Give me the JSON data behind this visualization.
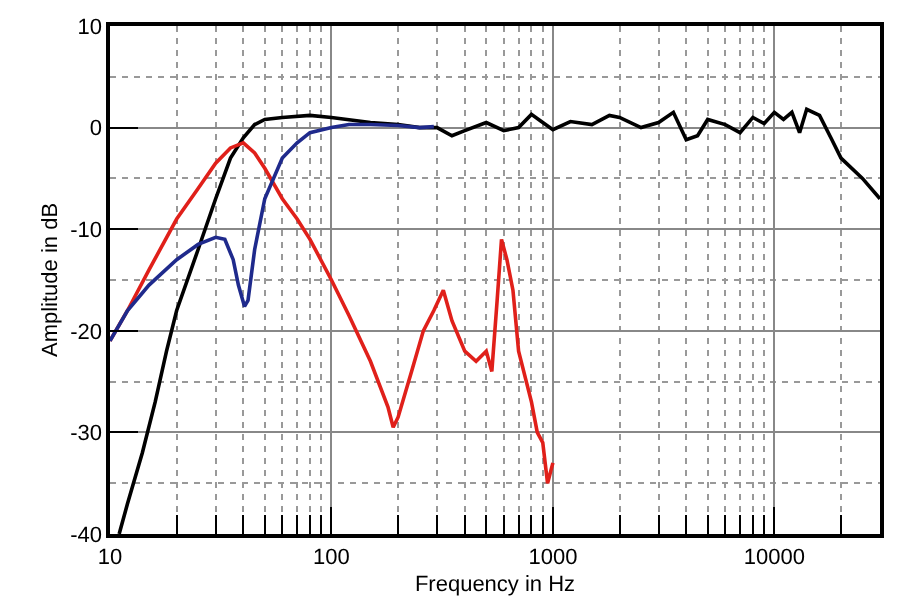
{
  "chart_data": {
    "type": "line",
    "xlabel": "Frequency in Hz",
    "ylabel": "Amplitude in dB",
    "xlim": [
      10,
      30000
    ],
    "ylim": [
      -40,
      10
    ],
    "xticks": [
      10,
      100,
      1000,
      10000
    ],
    "yticks": [
      -40,
      -30,
      -20,
      -10,
      0,
      10
    ],
    "log": "x",
    "grid": true,
    "marker": "none",
    "line_style": "solid",
    "series": [
      {
        "color": "#000000",
        "x": [
          11,
          12,
          14,
          16,
          18,
          20,
          25,
          30,
          35,
          40,
          45,
          50,
          60,
          80,
          100,
          150,
          200,
          250,
          300,
          350,
          400,
          500,
          600,
          700,
          800,
          900,
          1000,
          1200,
          1500,
          1800,
          2000,
          2500,
          3000,
          3500,
          4000,
          4500,
          5000,
          6000,
          7000,
          8000,
          9000,
          10000,
          11000,
          12000,
          13000,
          14000,
          16000,
          18000,
          20000,
          25000,
          30000
        ],
        "values": [
          -40,
          -37,
          -32,
          -27,
          -22,
          -18,
          -12,
          -7,
          -3,
          -1,
          0.3,
          0.8,
          1,
          1.2,
          1,
          0.5,
          0.3,
          0,
          0,
          -0.8,
          -0.3,
          0.5,
          -0.3,
          0,
          1.3,
          0.5,
          -0.2,
          0.6,
          0.3,
          1.2,
          1,
          0,
          0.5,
          1.5,
          -1.2,
          -0.8,
          0.8,
          0.3,
          -0.5,
          1,
          0.4,
          1.5,
          0.8,
          1.5,
          -0.5,
          1.8,
          1.2,
          -1,
          -3,
          -5,
          -7
        ]
      },
      {
        "color": "#e0201a",
        "x": [
          10,
          12,
          15,
          20,
          25,
          30,
          35,
          40,
          45,
          50,
          60,
          70,
          80,
          100,
          120,
          150,
          180,
          190,
          200,
          230,
          260,
          290,
          320,
          350,
          400,
          450,
          500,
          530,
          560,
          586,
          620,
          660,
          700,
          800,
          850,
          900,
          946,
          1000
        ],
        "values": [
          -21,
          -18,
          -14,
          -9,
          -6,
          -3.5,
          -2,
          -1.5,
          -2.5,
          -4,
          -7,
          -9,
          -11,
          -15,
          -18.5,
          -23,
          -27.5,
          -29.5,
          -28.5,
          -24,
          -20,
          -18,
          -16,
          -19,
          -22,
          -23,
          -22,
          -24,
          -17,
          -11,
          -13,
          -16,
          -22,
          -27,
          -30,
          -31,
          -35,
          -33
        ]
      },
      {
        "color": "#1f2a8c",
        "x": [
          10,
          12,
          15,
          20,
          25,
          30,
          33,
          36,
          38,
          40.5,
          42,
          45,
          50,
          60,
          70,
          80,
          100,
          120,
          150,
          200,
          250,
          290
        ],
        "values": [
          -21,
          -18,
          -15.5,
          -13,
          -11.5,
          -10.8,
          -11,
          -13,
          -15.5,
          -17.6,
          -17,
          -12,
          -7,
          -3,
          -1.5,
          -0.5,
          0,
          0.3,
          0.3,
          0.2,
          0,
          0.1
        ]
      }
    ]
  }
}
